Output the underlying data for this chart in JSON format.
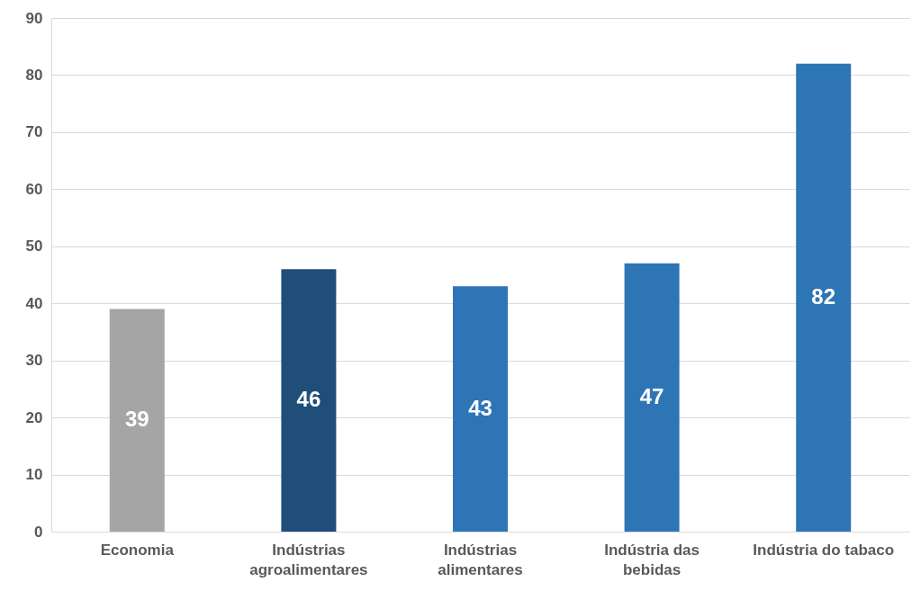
{
  "chart_data": {
    "type": "bar",
    "categories": [
      "Economia",
      "Indústrias agroalimentares",
      "Indústrias alimentares",
      "Indústria das bebidas",
      "Indústria do tabaco"
    ],
    "values": [
      39,
      46,
      43,
      47,
      82
    ],
    "colors": [
      "#a5a5a5",
      "#1f4e79",
      "#2e75b6",
      "#2e75b6",
      "#2e75b6"
    ],
    "ylim": [
      0,
      90
    ],
    "yticks": [
      0,
      10,
      20,
      30,
      40,
      50,
      60,
      70,
      80,
      90
    ],
    "grid": "y",
    "data_labels": true
  }
}
